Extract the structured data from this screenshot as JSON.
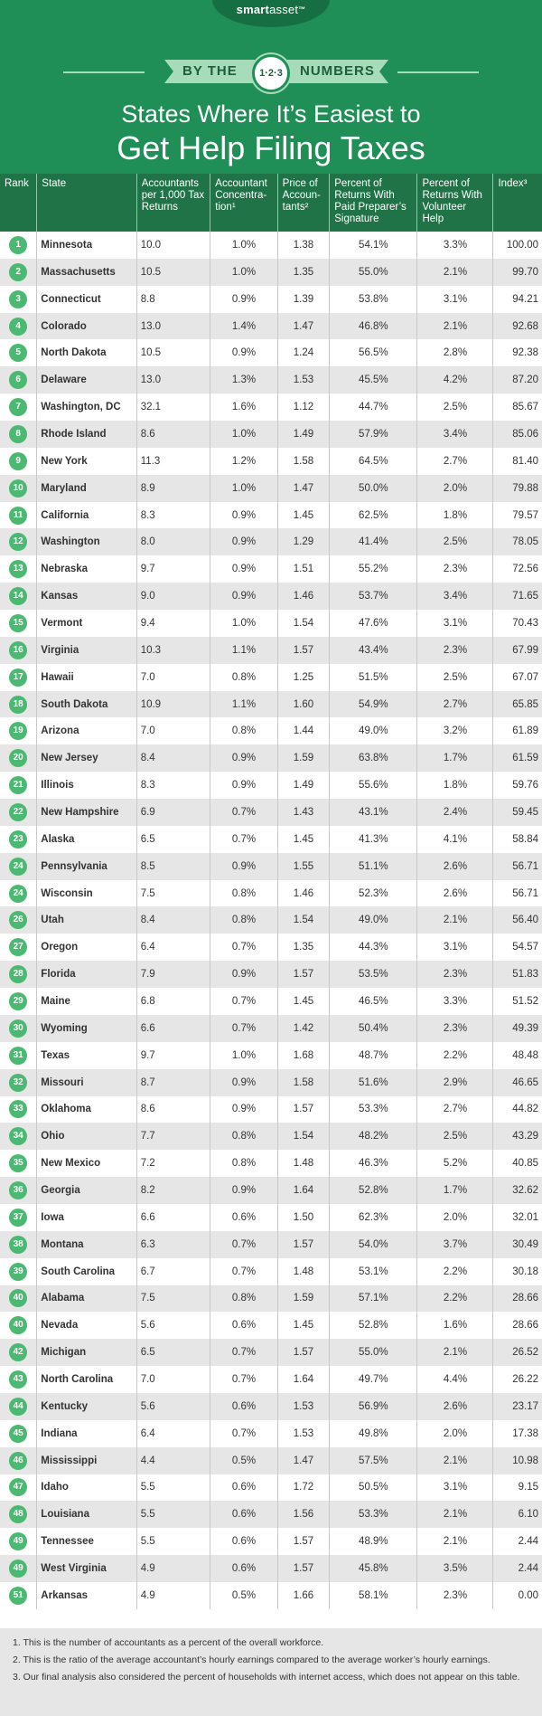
{
  "header": {
    "logo_brand": "smart",
    "logo_rest": "asset",
    "logo_tm": "™",
    "by_the": "BY THE",
    "badge": "1·2·3",
    "numbers": "NUMBERS",
    "title_line1": "States Where It’s Easiest to",
    "title_line2": "Get Help Filing Taxes",
    "colors": {
      "background": "#1f8f57",
      "ribbon": "#a6dcb9",
      "rank_circle": "#4bb971",
      "header_row": "#1f7347"
    }
  },
  "table": {
    "columns": {
      "rank": "Rank",
      "state": "State",
      "accountants": "Accountants per 1,000 Tax Returns",
      "concentration": "Accountant Concentra-tion¹",
      "price": "Price of Accoun-tants²",
      "paid": "Percent of Returns With Paid Preparer’s Signature",
      "volunteer": "Percent of Returns With Volunteer Help",
      "index": "Index³"
    },
    "rows": [
      {
        "rank": "1",
        "state": "Minnesota",
        "acc": "10.0",
        "conc": "1.0%",
        "price": "1.38",
        "paid": "54.1%",
        "vol": "3.3%",
        "index": "100.00"
      },
      {
        "rank": "2",
        "state": "Massachusetts",
        "acc": "10.5",
        "conc": "1.0%",
        "price": "1.35",
        "paid": "55.0%",
        "vol": "2.1%",
        "index": "99.70"
      },
      {
        "rank": "3",
        "state": "Connecticut",
        "acc": "8.8",
        "conc": "0.9%",
        "price": "1.39",
        "paid": "53.8%",
        "vol": "3.1%",
        "index": "94.21"
      },
      {
        "rank": "4",
        "state": "Colorado",
        "acc": "13.0",
        "conc": "1.4%",
        "price": "1.47",
        "paid": "46.8%",
        "vol": "2.1%",
        "index": "92.68"
      },
      {
        "rank": "5",
        "state": "North Dakota",
        "acc": "10.5",
        "conc": "0.9%",
        "price": "1.24",
        "paid": "56.5%",
        "vol": "2.8%",
        "index": "92.38"
      },
      {
        "rank": "6",
        "state": "Delaware",
        "acc": "13.0",
        "conc": "1.3%",
        "price": "1.53",
        "paid": "45.5%",
        "vol": "4.2%",
        "index": "87.20"
      },
      {
        "rank": "7",
        "state": "Washington, DC",
        "acc": "32.1",
        "conc": "1.6%",
        "price": "1.12",
        "paid": "44.7%",
        "vol": "2.5%",
        "index": "85.67"
      },
      {
        "rank": "8",
        "state": "Rhode Island",
        "acc": "8.6",
        "conc": "1.0%",
        "price": "1.49",
        "paid": "57.9%",
        "vol": "3.4%",
        "index": "85.06"
      },
      {
        "rank": "9",
        "state": "New York",
        "acc": "11.3",
        "conc": "1.2%",
        "price": "1.58",
        "paid": "64.5%",
        "vol": "2.7%",
        "index": "81.40"
      },
      {
        "rank": "10",
        "state": "Maryland",
        "acc": "8.9",
        "conc": "1.0%",
        "price": "1.47",
        "paid": "50.0%",
        "vol": "2.0%",
        "index": "79.88"
      },
      {
        "rank": "11",
        "state": "California",
        "acc": "8.3",
        "conc": "0.9%",
        "price": "1.45",
        "paid": "62.5%",
        "vol": "1.8%",
        "index": "79.57"
      },
      {
        "rank": "12",
        "state": "Washington",
        "acc": "8.0",
        "conc": "0.9%",
        "price": "1.29",
        "paid": "41.4%",
        "vol": "2.5%",
        "index": "78.05"
      },
      {
        "rank": "13",
        "state": "Nebraska",
        "acc": "9.7",
        "conc": "0.9%",
        "price": "1.51",
        "paid": "55.2%",
        "vol": "2.3%",
        "index": "72.56"
      },
      {
        "rank": "14",
        "state": "Kansas",
        "acc": "9.0",
        "conc": "0.9%",
        "price": "1.46",
        "paid": "53.7%",
        "vol": "3.4%",
        "index": "71.65"
      },
      {
        "rank": "15",
        "state": "Vermont",
        "acc": "9.4",
        "conc": "1.0%",
        "price": "1.54",
        "paid": "47.6%",
        "vol": "3.1%",
        "index": "70.43"
      },
      {
        "rank": "16",
        "state": "Virginia",
        "acc": "10.3",
        "conc": "1.1%",
        "price": "1.57",
        "paid": "43.4%",
        "vol": "2.3%",
        "index": "67.99"
      },
      {
        "rank": "17",
        "state": "Hawaii",
        "acc": "7.0",
        "conc": "0.8%",
        "price": "1.25",
        "paid": "51.5%",
        "vol": "2.5%",
        "index": "67.07"
      },
      {
        "rank": "18",
        "state": "South Dakota",
        "acc": "10.9",
        "conc": "1.1%",
        "price": "1.60",
        "paid": "54.9%",
        "vol": "2.7%",
        "index": "65.85"
      },
      {
        "rank": "19",
        "state": "Arizona",
        "acc": "7.0",
        "conc": "0.8%",
        "price": "1.44",
        "paid": "49.0%",
        "vol": "3.2%",
        "index": "61.89"
      },
      {
        "rank": "20",
        "state": "New Jersey",
        "acc": "8.4",
        "conc": "0.9%",
        "price": "1.59",
        "paid": "63.8%",
        "vol": "1.7%",
        "index": "61.59"
      },
      {
        "rank": "21",
        "state": "Illinois",
        "acc": "8.3",
        "conc": "0.9%",
        "price": "1.49",
        "paid": "55.6%",
        "vol": "1.8%",
        "index": "59.76"
      },
      {
        "rank": "22",
        "state": "New Hampshire",
        "acc": "6.9",
        "conc": "0.7%",
        "price": "1.43",
        "paid": "43.1%",
        "vol": "2.4%",
        "index": "59.45"
      },
      {
        "rank": "23",
        "state": "Alaska",
        "acc": "6.5",
        "conc": "0.7%",
        "price": "1.45",
        "paid": "41.3%",
        "vol": "4.1%",
        "index": "58.84"
      },
      {
        "rank": "24",
        "state": "Pennsylvania",
        "acc": "8.5",
        "conc": "0.9%",
        "price": "1.55",
        "paid": "51.1%",
        "vol": "2.6%",
        "index": "56.71"
      },
      {
        "rank": "24",
        "state": "Wisconsin",
        "acc": "7.5",
        "conc": "0.8%",
        "price": "1.46",
        "paid": "52.3%",
        "vol": "2.6%",
        "index": "56.71"
      },
      {
        "rank": "26",
        "state": "Utah",
        "acc": "8.4",
        "conc": "0.8%",
        "price": "1.54",
        "paid": "49.0%",
        "vol": "2.1%",
        "index": "56.40"
      },
      {
        "rank": "27",
        "state": "Oregon",
        "acc": "6.4",
        "conc": "0.7%",
        "price": "1.35",
        "paid": "44.3%",
        "vol": "3.1%",
        "index": "54.57"
      },
      {
        "rank": "28",
        "state": "Florida",
        "acc": "7.9",
        "conc": "0.9%",
        "price": "1.57",
        "paid": "53.5%",
        "vol": "2.3%",
        "index": "51.83"
      },
      {
        "rank": "29",
        "state": "Maine",
        "acc": "6.8",
        "conc": "0.7%",
        "price": "1.45",
        "paid": "46.5%",
        "vol": "3.3%",
        "index": "51.52"
      },
      {
        "rank": "30",
        "state": "Wyoming",
        "acc": "6.6",
        "conc": "0.7%",
        "price": "1.42",
        "paid": "50.4%",
        "vol": "2.3%",
        "index": "49.39"
      },
      {
        "rank": "31",
        "state": "Texas",
        "acc": "9.7",
        "conc": "1.0%",
        "price": "1.68",
        "paid": "48.7%",
        "vol": "2.2%",
        "index": "48.48"
      },
      {
        "rank": "32",
        "state": "Missouri",
        "acc": "8.7",
        "conc": "0.9%",
        "price": "1.58",
        "paid": "51.6%",
        "vol": "2.9%",
        "index": "46.65"
      },
      {
        "rank": "33",
        "state": "Oklahoma",
        "acc": "8.6",
        "conc": "0.9%",
        "price": "1.57",
        "paid": "53.3%",
        "vol": "2.7%",
        "index": "44.82"
      },
      {
        "rank": "34",
        "state": "Ohio",
        "acc": "7.7",
        "conc": "0.8%",
        "price": "1.54",
        "paid": "48.2%",
        "vol": "2.5%",
        "index": "43.29"
      },
      {
        "rank": "35",
        "state": "New Mexico",
        "acc": "7.2",
        "conc": "0.8%",
        "price": "1.48",
        "paid": "46.3%",
        "vol": "5.2%",
        "index": "40.85"
      },
      {
        "rank": "36",
        "state": "Georgia",
        "acc": "8.2",
        "conc": "0.9%",
        "price": "1.64",
        "paid": "52.8%",
        "vol": "1.7%",
        "index": "32.62"
      },
      {
        "rank": "37",
        "state": "Iowa",
        "acc": "6.6",
        "conc": "0.6%",
        "price": "1.50",
        "paid": "62.3%",
        "vol": "2.0%",
        "index": "32.01"
      },
      {
        "rank": "38",
        "state": "Montana",
        "acc": "6.3",
        "conc": "0.7%",
        "price": "1.57",
        "paid": "54.0%",
        "vol": "3.7%",
        "index": "30.49"
      },
      {
        "rank": "39",
        "state": "South Carolina",
        "acc": "6.7",
        "conc": "0.7%",
        "price": "1.48",
        "paid": "53.1%",
        "vol": "2.2%",
        "index": "30.18"
      },
      {
        "rank": "40",
        "state": "Alabama",
        "acc": "7.5",
        "conc": "0.8%",
        "price": "1.59",
        "paid": "57.1%",
        "vol": "2.2%",
        "index": "28.66"
      },
      {
        "rank": "40",
        "state": "Nevada",
        "acc": "5.6",
        "conc": "0.6%",
        "price": "1.45",
        "paid": "52.8%",
        "vol": "1.6%",
        "index": "28.66"
      },
      {
        "rank": "42",
        "state": "Michigan",
        "acc": "6.5",
        "conc": "0.7%",
        "price": "1.57",
        "paid": "55.0%",
        "vol": "2.1%",
        "index": "26.52"
      },
      {
        "rank": "43",
        "state": "North Carolina",
        "acc": "7.0",
        "conc": "0.7%",
        "price": "1.64",
        "paid": "49.7%",
        "vol": "4.4%",
        "index": "26.22"
      },
      {
        "rank": "44",
        "state": "Kentucky",
        "acc": "5.6",
        "conc": "0.6%",
        "price": "1.53",
        "paid": "56.9%",
        "vol": "2.6%",
        "index": "23.17"
      },
      {
        "rank": "45",
        "state": "Indiana",
        "acc": "6.4",
        "conc": "0.7%",
        "price": "1.53",
        "paid": "49.8%",
        "vol": "2.0%",
        "index": "17.38"
      },
      {
        "rank": "46",
        "state": "Mississippi",
        "acc": "4.4",
        "conc": "0.5%",
        "price": "1.47",
        "paid": "57.5%",
        "vol": "2.1%",
        "index": "10.98"
      },
      {
        "rank": "47",
        "state": "Idaho",
        "acc": "5.5",
        "conc": "0.6%",
        "price": "1.72",
        "paid": "50.5%",
        "vol": "3.1%",
        "index": "9.15"
      },
      {
        "rank": "48",
        "state": "Louisiana",
        "acc": "5.5",
        "conc": "0.6%",
        "price": "1.56",
        "paid": "53.3%",
        "vol": "2.1%",
        "index": "6.10"
      },
      {
        "rank": "49",
        "state": "Tennessee",
        "acc": "5.5",
        "conc": "0.6%",
        "price": "1.57",
        "paid": "48.9%",
        "vol": "2.1%",
        "index": "2.44"
      },
      {
        "rank": "49",
        "state": "West Virginia",
        "acc": "4.9",
        "conc": "0.6%",
        "price": "1.57",
        "paid": "45.8%",
        "vol": "3.5%",
        "index": "2.44"
      },
      {
        "rank": "51",
        "state": "Arkansas",
        "acc": "4.9",
        "conc": "0.5%",
        "price": "1.66",
        "paid": "58.1%",
        "vol": "2.3%",
        "index": "0.00"
      }
    ]
  },
  "footnotes": [
    "1.  This is the number of accountants as a percent of the overall workforce.",
    "2.  This is the ratio of the average accountant’s hourly earnings compared to the average worker’s hourly earnings.",
    "3.  Our final analysis also considered the percent of households with internet access, which does not appear on this table."
  ]
}
